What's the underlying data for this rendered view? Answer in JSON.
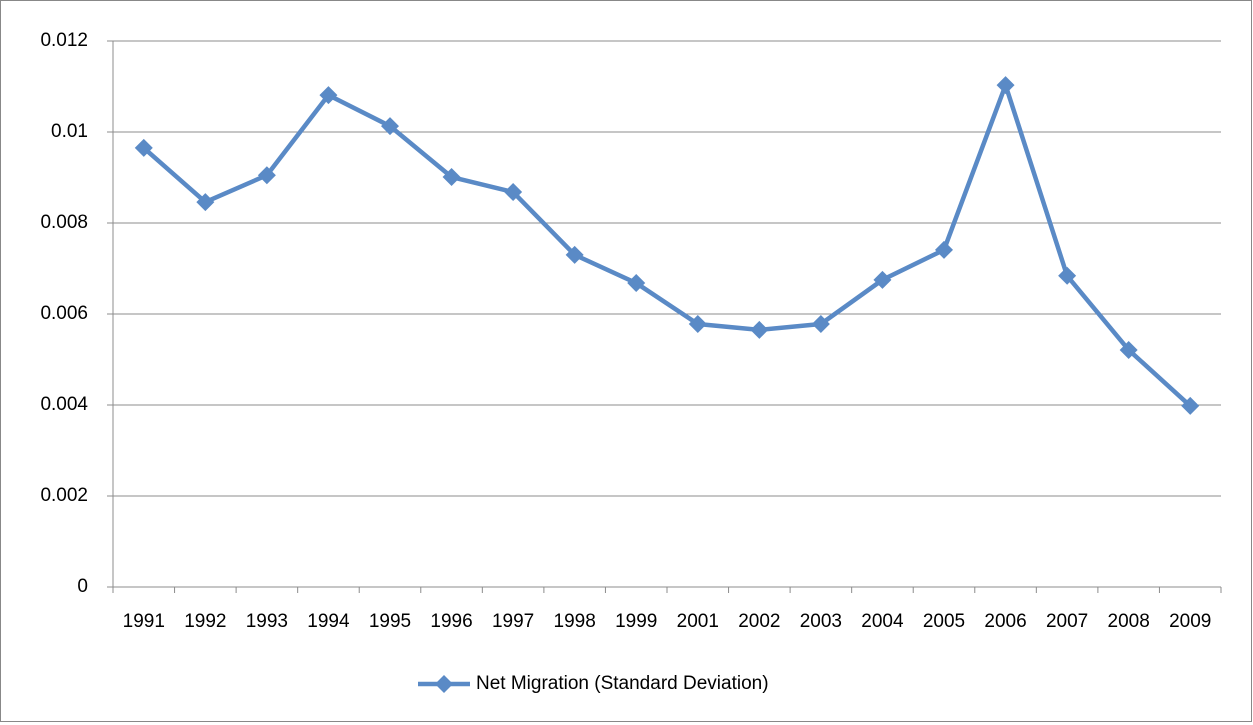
{
  "chart_data": {
    "type": "line",
    "categories": [
      "1991",
      "1992",
      "1993",
      "1994",
      "1995",
      "1996",
      "1997",
      "1998",
      "1999",
      "2001",
      "2002",
      "2003",
      "2004",
      "2005",
      "2006",
      "2007",
      "2008",
      "2009"
    ],
    "series": [
      {
        "name": "Net Migration (Standard Deviation)",
        "color": "#5a8ac6",
        "values": [
          0.00965,
          0.00846,
          0.00905,
          0.01081,
          0.01013,
          0.00901,
          0.00868,
          0.0073,
          0.00668,
          0.00578,
          0.00565,
          0.00578,
          0.00675,
          0.00741,
          0.01103,
          0.00684,
          0.00521,
          0.00398
        ]
      }
    ],
    "ylim": [
      0,
      0.012
    ],
    "yticks": [
      0,
      0.002,
      0.004,
      0.006,
      0.008,
      0.01,
      0.012
    ],
    "grid": true,
    "legend": "bottom"
  }
}
